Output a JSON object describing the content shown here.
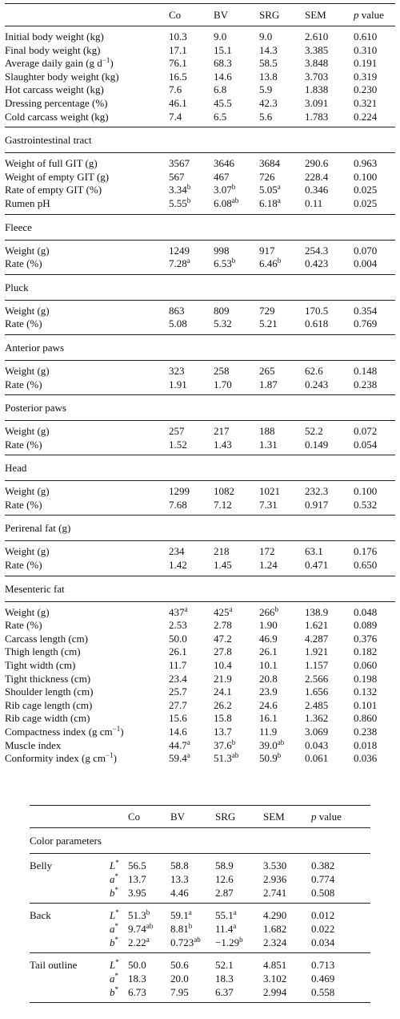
{
  "table1": {
    "headers": [
      "",
      "Co",
      "BV",
      "SRG",
      "SEM",
      "p value"
    ],
    "blocks": [
      {
        "section": "",
        "rows": [
          [
            "Initial body weight (kg)",
            "10.3",
            "9.0",
            "9.0",
            "2.610",
            "0.610"
          ],
          [
            "Final body weight (kg)",
            "17.1",
            "15.1",
            "14.3",
            "3.385",
            "0.310"
          ],
          [
            "Average daily gain (g d−1)",
            "76.1",
            "68.3",
            "58.5",
            "3.848",
            "0.191"
          ],
          [
            "Slaughter body weight (kg)",
            "16.5",
            "14.6",
            "13.8",
            "3.703",
            "0.319"
          ],
          [
            "Hot carcass weight (kg)",
            "7.6",
            "6.8",
            "5.9",
            "1.838",
            "0.230"
          ],
          [
            "Dressing percentage (%)",
            "46.1",
            "45.5",
            "42.3",
            "3.091",
            "0.321"
          ],
          [
            "Cold carcass weight (kg)",
            "7.4",
            "6.5",
            "5.6",
            "1.783",
            "0.224"
          ]
        ]
      },
      {
        "section": "Gastrointestinal tract",
        "rows": [
          [
            "Weight of full GIT (g)",
            "3567",
            "3646",
            "3684",
            "290.6",
            "0.963"
          ],
          [
            "Weight of empty GIT (g)",
            "567",
            "467",
            "726",
            "228.4",
            "0.100"
          ],
          [
            "Rate of empty GIT (%)",
            "3.34b",
            "3.07b",
            "5.05a",
            "0.346",
            "0.025"
          ],
          [
            "Rumen pH",
            "5.55b",
            "6.08ab",
            "6.18a",
            "0.11",
            "0.025"
          ]
        ]
      },
      {
        "section": "Fleece",
        "rows": [
          [
            "Weight (g)",
            "1249",
            "998",
            "917",
            "254.3",
            "0.070"
          ],
          [
            "Rate (%)",
            "7.28a",
            "6.53b",
            "6.46b",
            "0.423",
            "0.004"
          ]
        ]
      },
      {
        "section": "Pluck",
        "rows": [
          [
            "Weight (g)",
            "863",
            "809",
            "729",
            "170.5",
            "0.354"
          ],
          [
            "Rate (%)",
            "5.08",
            "5.32",
            "5.21",
            "0.618",
            "0.769"
          ]
        ]
      },
      {
        "section": "Anterior paws",
        "rows": [
          [
            "Weight (g)",
            "323",
            "258",
            "265",
            "62.6",
            "0.148"
          ],
          [
            "Rate (%)",
            "1.91",
            "1.70",
            "1.87",
            "0.243",
            "0.238"
          ]
        ]
      },
      {
        "section": "Posterior paws",
        "rows": [
          [
            "Weight (g)",
            "257",
            "217",
            "188",
            "52.2",
            "0.072"
          ],
          [
            "Rate (%)",
            "1.52",
            "1.43",
            "1.31",
            "0.149",
            "0.054"
          ]
        ]
      },
      {
        "section": "Head",
        "rows": [
          [
            "Weight (g)",
            "1299",
            "1082",
            "1021",
            "232.3",
            "0.100"
          ],
          [
            "Rate (%)",
            "7.68",
            "7.12",
            "7.31",
            "0.917",
            "0.532"
          ]
        ]
      },
      {
        "section": "Perirenal fat (g)",
        "rows": [
          [
            "Weight (g)",
            "234",
            "218",
            "172",
            "63.1",
            "0.176"
          ],
          [
            "Rate (%)",
            "1.42",
            "1.45",
            "1.24",
            "0.471",
            "0.650"
          ]
        ]
      },
      {
        "section": "Mesenteric fat",
        "rows": [
          [
            "Weight (g)",
            "437a",
            "425a",
            "266b",
            "138.9",
            "0.048"
          ],
          [
            "Rate (%)",
            "2.53",
            "2.78",
            "1.90",
            "1.621",
            "0.089"
          ],
          [
            "Carcass length (cm)",
            "50.0",
            "47.2",
            "46.9",
            "4.287",
            "0.376"
          ],
          [
            "Thigh length (cm)",
            "26.1",
            "27.8",
            "26.1",
            "1.921",
            "0.182"
          ],
          [
            "Tight width (cm)",
            "11.7",
            "10.4",
            "10.1",
            "1.157",
            "0.060"
          ],
          [
            "Tight thickness (cm)",
            "23.4",
            "21.9",
            "20.8",
            "2.566",
            "0.198"
          ],
          [
            "Shoulder length (cm)",
            "25.7",
            "24.1",
            "23.9",
            "1.656",
            "0.132"
          ],
          [
            "Rib cage length (cm)",
            "27.7",
            "26.2",
            "24.6",
            "2.485",
            "0.101"
          ],
          [
            "Rib cage width (cm)",
            "15.6",
            "15.8",
            "16.1",
            "1.362",
            "0.860"
          ],
          [
            "Compactness index (g cm−1)",
            "14.6",
            "13.7",
            "11.9",
            "3.069",
            "0.238"
          ],
          [
            "Muscle index",
            "44.7a",
            "37.6b",
            "39.0ab",
            "0.043",
            "0.018"
          ],
          [
            "Conformity index (g cm−1)",
            "59.4a",
            "51.3ab",
            "50.9b",
            "0.061",
            "0.036"
          ]
        ]
      }
    ]
  },
  "table2": {
    "headers": [
      "",
      "",
      "Co",
      "BV",
      "SRG",
      "SEM",
      "p value"
    ],
    "section": "Color parameters",
    "groups": [
      {
        "name": "Belly",
        "rows": [
          [
            "L*",
            "56.5",
            "58.8",
            "58.9",
            "3.530",
            "0.382"
          ],
          [
            "a*",
            "13.7",
            "13.3",
            "12.6",
            "2.936",
            "0.774"
          ],
          [
            "b*",
            "3.95",
            "4.46",
            "2.87",
            "2.741",
            "0.508"
          ]
        ]
      },
      {
        "name": "Back",
        "rows": [
          [
            "L*",
            "51.3b",
            "59.1a",
            "55.1a",
            "4.290",
            "0.012"
          ],
          [
            "a*",
            "9.74ab",
            "8.81b",
            "11.4a",
            "1.682",
            "0.022"
          ],
          [
            "b*",
            "2.22a",
            "0.723ab",
            "−1.29b",
            "2.324",
            "0.034"
          ]
        ]
      },
      {
        "name": "Tail outline",
        "rows": [
          [
            "L*",
            "50.0",
            "50.6",
            "52.1",
            "4.851",
            "0.713"
          ],
          [
            "a*",
            "18.3",
            "20.0",
            "18.3",
            "3.102",
            "0.469"
          ],
          [
            "b*",
            "6.73",
            "7.95",
            "6.37",
            "2.994",
            "0.558"
          ]
        ]
      }
    ]
  }
}
